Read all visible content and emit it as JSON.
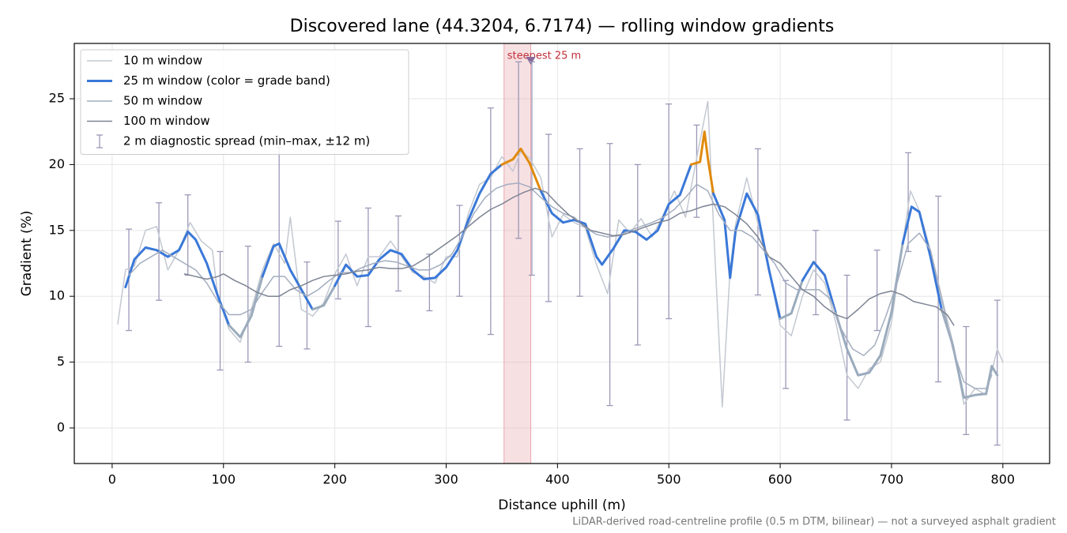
{
  "chart_data": {
    "type": "line",
    "title": "Discovered lane (44.3204, 6.7174) — rolling window gradients",
    "x_label": "Distance uphill (m)",
    "y_label": "Gradient (%)",
    "note": "LiDAR-derived road-centreline profile (0.5 m DTM, bilinear) — not a surveyed asphalt gradient",
    "xlim": [
      -34,
      842
    ],
    "ylim": [
      -2.7,
      29.2
    ],
    "xticks": [
      0,
      100,
      200,
      300,
      400,
      500,
      600,
      700,
      800
    ],
    "yticks": [
      0,
      5,
      10,
      15,
      20,
      25
    ],
    "grid": true,
    "legend": "upper left",
    "highlight": {
      "label": "steepest 25 m",
      "x": [
        352,
        376
      ],
      "color": "#e8a7ad"
    },
    "series": [
      {
        "name": "10 m window",
        "color": "#c3c8d1",
        "width": 1.5,
        "x": [
          5,
          12,
          20,
          30,
          40,
          50,
          60,
          70,
          80,
          90,
          95,
          105,
          115,
          125,
          135,
          145,
          155,
          160,
          170,
          180,
          190,
          200,
          210,
          220,
          230,
          240,
          250,
          260,
          270,
          280,
          290,
          300,
          310,
          320,
          330,
          340,
          350,
          360,
          367,
          375,
          385,
          395,
          405,
          415,
          425,
          435,
          445,
          455,
          465,
          475,
          485,
          495,
          505,
          515,
          525,
          535,
          540,
          548,
          555,
          560,
          570,
          580,
          590,
          600,
          610,
          620,
          630,
          640,
          650,
          660,
          670,
          680,
          690,
          700,
          710,
          717,
          725,
          735,
          745,
          755,
          765,
          775,
          785,
          795,
          800
        ],
        "values": [
          7.9,
          12.0,
          12.3,
          15.0,
          15.3,
          12.0,
          13.5,
          15.6,
          14.2,
          13.5,
          10.0,
          7.5,
          6.5,
          9.0,
          12.0,
          14.0,
          12.5,
          16.0,
          9.0,
          8.5,
          9.5,
          11.7,
          13.2,
          10.8,
          13.0,
          13.0,
          14.2,
          13.0,
          11.8,
          11.5,
          11.0,
          13.0,
          13.0,
          16.3,
          18.5,
          19.0,
          20.6,
          19.5,
          21.0,
          20.5,
          19.0,
          14.5,
          16.2,
          15.6,
          15.2,
          12.4,
          10.2,
          15.8,
          14.8,
          15.9,
          14.5,
          16.2,
          18.0,
          16.0,
          20.5,
          24.8,
          15.5,
          1.6,
          12.0,
          15.5,
          19.0,
          15.5,
          12.0,
          7.8,
          7.0,
          10.0,
          12.0,
          11.0,
          8.0,
          4.0,
          3.0,
          4.5,
          5.0,
          8.0,
          14.0,
          18.0,
          16.5,
          13.5,
          10.0,
          6.5,
          1.8,
          3.0,
          2.5,
          6.0,
          5.0
        ]
      },
      {
        "name": "25 m window (color = grade band)",
        "color": "#3a78d8",
        "width": 3,
        "grade_bands": [
          {
            "max": 10,
            "color": "#9aabbd"
          },
          {
            "max": 20,
            "color": "#3a78d8"
          },
          {
            "color": "#e08a0c"
          }
        ],
        "x": [
          12,
          20,
          30,
          40,
          50,
          60,
          68,
          75,
          85,
          95,
          105,
          115,
          125,
          135,
          145,
          150,
          160,
          170,
          180,
          190,
          200,
          210,
          220,
          230,
          240,
          250,
          260,
          270,
          280,
          290,
          300,
          310,
          320,
          330,
          340,
          350,
          360,
          367,
          375,
          385,
          395,
          405,
          415,
          425,
          435,
          440,
          450,
          460,
          470,
          480,
          490,
          500,
          510,
          520,
          528,
          532,
          535,
          540,
          550,
          555,
          560,
          570,
          580,
          590,
          600,
          610,
          620,
          630,
          640,
          650,
          660,
          670,
          680,
          690,
          700,
          710,
          718,
          725,
          735,
          745,
          755,
          765,
          775,
          785,
          790,
          795
        ],
        "values": [
          10.7,
          12.8,
          13.7,
          13.5,
          13.0,
          13.5,
          14.9,
          14.3,
          12.5,
          10.0,
          7.8,
          6.9,
          8.5,
          11.5,
          13.8,
          14.0,
          12.0,
          10.5,
          9.0,
          9.3,
          10.8,
          12.4,
          11.5,
          11.6,
          12.8,
          13.5,
          13.2,
          12.0,
          11.3,
          11.4,
          12.2,
          13.5,
          15.8,
          17.8,
          19.3,
          20.0,
          20.4,
          21.2,
          20.1,
          18.0,
          16.3,
          15.6,
          15.8,
          15.5,
          13.0,
          12.4,
          13.6,
          15.0,
          14.9,
          14.3,
          15.0,
          17.0,
          17.7,
          20.0,
          20.2,
          22.5,
          20.5,
          17.8,
          15.8,
          11.4,
          15.0,
          17.8,
          16.2,
          12.0,
          8.3,
          8.7,
          11.2,
          12.6,
          11.6,
          8.7,
          6.0,
          4.0,
          4.2,
          5.5,
          8.8,
          14.0,
          16.8,
          16.4,
          13.0,
          9.0,
          6.3,
          2.3,
          2.5,
          2.6,
          4.7,
          4.0
        ]
      },
      {
        "name": "50 m window",
        "color": "#a3adbf",
        "width": 1.5,
        "x": [
          15,
          25,
          35,
          45,
          55,
          65,
          75,
          85,
          95,
          105,
          115,
          125,
          135,
          145,
          155,
          165,
          175,
          185,
          195,
          205,
          215,
          225,
          235,
          245,
          255,
          265,
          275,
          285,
          295,
          305,
          315,
          325,
          335,
          345,
          355,
          365,
          375,
          385,
          395,
          405,
          415,
          425,
          435,
          445,
          455,
          465,
          475,
          485,
          495,
          505,
          515,
          525,
          535,
          545,
          555,
          565,
          575,
          585,
          595,
          605,
          615,
          625,
          635,
          645,
          655,
          665,
          675,
          685,
          695,
          705,
          715,
          725,
          735,
          745,
          755,
          765,
          775,
          785,
          790
        ],
        "values": [
          11.6,
          12.5,
          13.0,
          13.5,
          13.0,
          12.5,
          12.0,
          11.0,
          9.6,
          8.6,
          8.6,
          9.0,
          10.3,
          11.5,
          11.5,
          10.5,
          10.0,
          10.5,
          11.2,
          11.8,
          11.8,
          12.2,
          12.5,
          12.7,
          12.6,
          12.3,
          12.0,
          12.0,
          12.4,
          13.2,
          14.6,
          16.3,
          17.5,
          18.2,
          18.5,
          18.6,
          18.3,
          17.5,
          16.8,
          16.3,
          16.0,
          15.2,
          14.7,
          14.5,
          14.6,
          15.0,
          15.3,
          15.6,
          16.0,
          16.6,
          17.5,
          18.5,
          18.0,
          16.2,
          15.0,
          15.0,
          14.5,
          13.5,
          12.5,
          11.0,
          10.5,
          10.5,
          10.5,
          9.8,
          7.5,
          6.0,
          5.5,
          6.3,
          8.5,
          11.0,
          14.0,
          14.8,
          13.5,
          9.8,
          6.0,
          3.5,
          3.0,
          3.0,
          4.0
        ]
      },
      {
        "name": "100 m window",
        "color": "#7d8494",
        "width": 1.5,
        "x": [
          65,
          75,
          85,
          95,
          100,
          110,
          120,
          130,
          140,
          150,
          160,
          170,
          180,
          190,
          200,
          210,
          220,
          230,
          240,
          250,
          260,
          270,
          280,
          290,
          300,
          310,
          320,
          330,
          340,
          350,
          360,
          370,
          380,
          390,
          400,
          410,
          420,
          430,
          440,
          450,
          460,
          470,
          480,
          490,
          500,
          510,
          520,
          530,
          540,
          550,
          560,
          570,
          580,
          590,
          600,
          610,
          620,
          630,
          640,
          650,
          660,
          670,
          680,
          690,
          700,
          710,
          720,
          730,
          740,
          750,
          756
        ],
        "values": [
          11.7,
          11.5,
          11.3,
          11.5,
          11.7,
          11.2,
          10.8,
          10.3,
          10.0,
          10.0,
          10.5,
          10.8,
          11.2,
          11.5,
          11.6,
          11.7,
          11.9,
          12.0,
          12.2,
          12.1,
          12.1,
          12.3,
          12.8,
          13.4,
          14.0,
          14.6,
          15.3,
          16.0,
          16.6,
          17.0,
          17.5,
          17.9,
          18.2,
          17.9,
          17.0,
          16.2,
          15.6,
          15.0,
          14.8,
          14.6,
          14.7,
          15.0,
          15.3,
          15.6,
          15.8,
          16.3,
          16.5,
          16.8,
          17.0,
          16.8,
          16.2,
          15.5,
          14.5,
          13.0,
          12.5,
          11.5,
          10.5,
          10.0,
          9.2,
          8.6,
          8.3,
          9.0,
          9.8,
          10.2,
          10.4,
          10.1,
          9.6,
          9.4,
          9.2,
          8.6,
          7.8
        ]
      }
    ],
    "error_bars": {
      "name": "2 m diagnostic spread (min–max, ±12 m)",
      "color": "#9b98b8",
      "x": [
        15,
        42,
        68,
        97,
        122,
        150,
        175,
        203,
        230,
        257,
        285,
        312,
        340,
        365,
        377,
        392,
        420,
        447,
        472,
        500,
        525,
        580,
        605,
        632,
        660,
        687,
        715,
        742,
        767,
        795
      ],
      "low": [
        7.4,
        9.7,
        11.6,
        4.4,
        5.0,
        6.2,
        6.0,
        9.8,
        7.7,
        10.4,
        8.9,
        10.0,
        7.1,
        14.4,
        11.6,
        9.6,
        10.0,
        1.7,
        6.3,
        8.3,
        16.0,
        10.1,
        3.0,
        8.6,
        0.6,
        7.4,
        13.4,
        3.5,
        -0.5,
        -1.3
      ],
      "high": [
        15.1,
        17.1,
        17.7,
        13.4,
        13.8,
        21.3,
        12.6,
        15.7,
        16.7,
        16.1,
        13.2,
        16.9,
        24.3,
        27.8,
        27.8,
        22.3,
        21.2,
        21.6,
        20.0,
        24.6,
        23.0,
        21.2,
        11.2,
        15.0,
        11.6,
        13.5,
        20.9,
        17.6,
        7.7,
        9.7
      ]
    }
  }
}
